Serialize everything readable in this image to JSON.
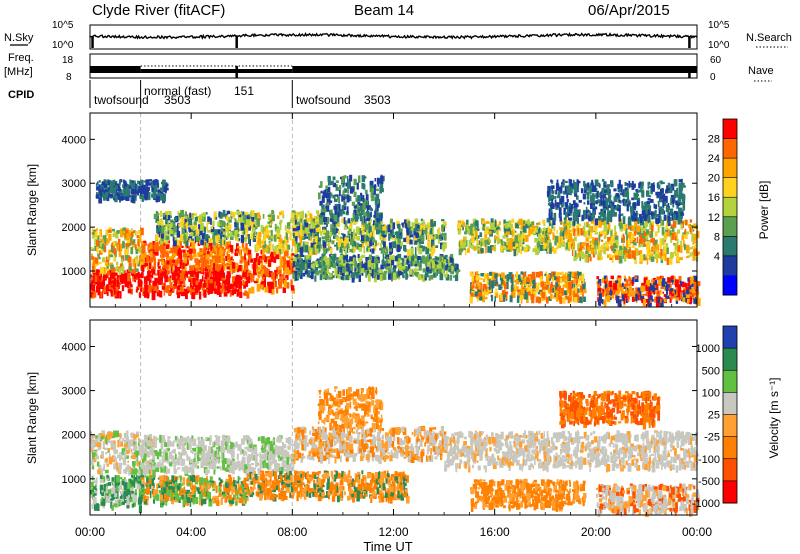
{
  "header": {
    "station": "Clyde River (fitACF)",
    "beam": "Beam 14",
    "date": "06/Apr/2015"
  },
  "chart_data": [
    {
      "type": "line",
      "panel": "noise",
      "left_label": "N.Sky",
      "right_label": "N.Search",
      "left_ticks": [
        "10^5",
        "10^0"
      ],
      "right_ticks": [
        "10^5",
        "10^0"
      ]
    },
    {
      "type": "line",
      "panel": "frequency",
      "left_label_1": "Freq.",
      "left_label_2": "[MHz]",
      "right_label": "Nave",
      "left_ticks": [
        "18",
        "8"
      ],
      "right_ticks": [
        "60",
        "0"
      ]
    },
    {
      "type": "table",
      "panel": "cpid",
      "label": "CPID",
      "segments": [
        {
          "name": "twofsound",
          "id": "3503",
          "start_hour": 0,
          "end_hour": 2
        },
        {
          "name": "normal (fast)",
          "id": "151",
          "start_hour": 2,
          "end_hour": 8
        },
        {
          "name": "twofsound",
          "id": "3503",
          "start_hour": 8,
          "end_hour": 24
        }
      ]
    },
    {
      "type": "heatmap",
      "panel": "power",
      "ylabel": "Slant Range [km]",
      "ylim": [
        180,
        4600
      ],
      "yticks": [
        "1000",
        "2000",
        "3000",
        "4000"
      ],
      "colorbar_label": "Power [dB]",
      "colorbar_ticks": [
        "28",
        "24",
        "20",
        "16",
        "12",
        "8",
        "4"
      ],
      "colors": [
        "#ff0000",
        "#ff6600",
        "#ffa500",
        "#ffd21e",
        "#b4d23c",
        "#5aa050",
        "#2a7a70",
        "#1e3ca0",
        "#0000ff"
      ]
    },
    {
      "type": "heatmap",
      "panel": "velocity",
      "ylabel": "Slant Range [km]",
      "ylim": [
        180,
        4600
      ],
      "yticks": [
        "1000",
        "2000",
        "3000",
        "4000"
      ],
      "xlabel": "Time UT",
      "xticks": [
        "00:00",
        "04:00",
        "08:00",
        "12:00",
        "16:00",
        "20:00",
        "00:00"
      ],
      "xlim": [
        "00:00",
        "24:00"
      ],
      "colorbar_label": "Velocity [m s⁻¹]",
      "colorbar_ticks": [
        "1000",
        "500",
        "100",
        "25",
        "-25",
        "-100",
        "-500",
        "-1000"
      ],
      "colors": [
        "#2040b0",
        "#2a8a50",
        "#60c040",
        "#c8c8c0",
        "#ffa030",
        "#ff8000",
        "#ff5000",
        "#ff0000"
      ],
      "ground_scatter_color": "#c8c8c0"
    }
  ]
}
